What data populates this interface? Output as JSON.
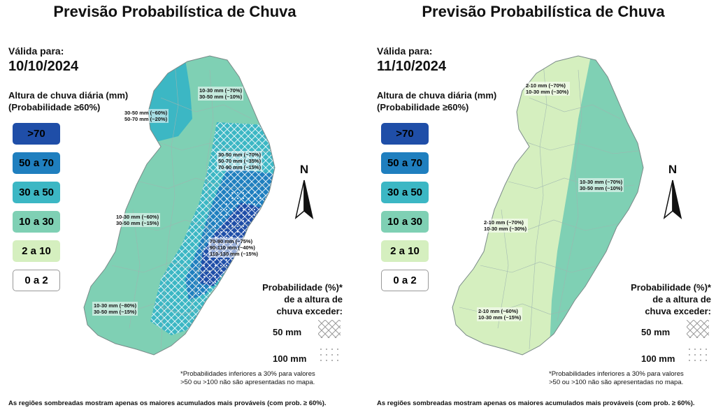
{
  "colors": {
    "gt70": "#1f4ea8",
    "r50_70": "#1f7fbf",
    "r30_50": "#3cb7c4",
    "r10_30": "#7fd0b4",
    "r2_10": "#d5efbf",
    "r0_2": "#ffffff"
  },
  "legend": {
    "title_line1": "Altura de chuva diária (mm)",
    "title_line2": "(Probabilidade ≥60%)",
    "items": [
      ">70",
      "50 a 70",
      "30 a 50",
      "10 a 30",
      "2 a 10",
      "0 a 2"
    ]
  },
  "probability_legend": {
    "title_line1": "Probabilidade (%)*",
    "title_line2": "de a altura de",
    "title_line3": "chuva exceder:",
    "row1": "50 mm",
    "row2": "100 mm"
  },
  "footnote": {
    "line1": "*Probabilidades inferiores a 30% para valores",
    "line2": ">50 ou >100 não são apresentadas no mapa."
  },
  "bottom_note": "As regiões sombreadas mostram apenas os maiores acumulados mais prováveis (com prob. ≥ 60%).",
  "north_label": "N",
  "panels": [
    {
      "title": "Previsão Probabilística de Chuva",
      "valid_label": "Válida para:",
      "date": "10/10/2024",
      "regions": [
        {
          "l1": "10-30 mm (~70%)",
          "l2": "30-50 mm (~10%)",
          "l3": ""
        },
        {
          "l1": "30-50 mm (~60%)",
          "l2": "50-70 mm (~20%)",
          "l3": ""
        },
        {
          "l1": "30-50 mm (~70%)",
          "l2": "50-70 mm (~35%)",
          "l3": "70-90 mm (~15%)"
        },
        {
          "l1": "10-30 mm (~60%)",
          "l2": "30-50 mm (~15%)",
          "l3": ""
        },
        {
          "l1": "70-90 mm (~75%)",
          "l2": "90-110 mm (~40%)",
          "l3": "110-130 mm (~15%)"
        },
        {
          "l1": "10-30 mm (~80%)",
          "l2": "30-50 mm (~15%)",
          "l3": ""
        }
      ]
    },
    {
      "title": "Previsão Probabilística de Chuva",
      "valid_label": "Válida para:",
      "date": "11/10/2024",
      "regions": [
        {
          "l1": "2-10 mm (~70%)",
          "l2": "10-30 mm (~30%)",
          "l3": ""
        },
        {
          "l1": "10-30 mm (~70%)",
          "l2": "30-50 mm (~10%)",
          "l3": ""
        },
        {
          "l1": "2-10 mm (~70%)",
          "l2": "10-30 mm (~30%)",
          "l3": ""
        },
        {
          "l1": "2-10 mm (~60%)",
          "l2": "10-30 mm (~15%)",
          "l3": ""
        }
      ]
    }
  ]
}
